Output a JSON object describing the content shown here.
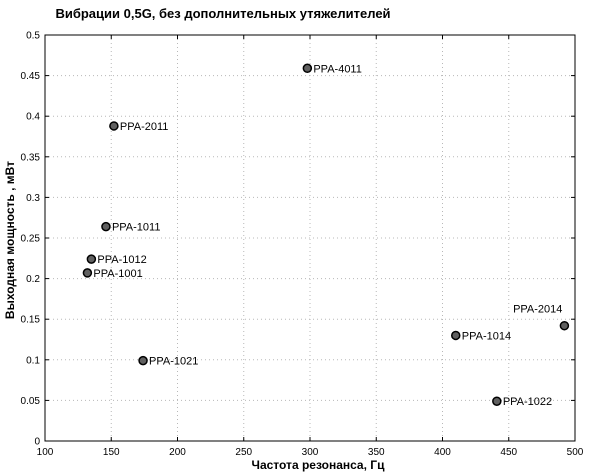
{
  "chart_data": {
    "type": "scatter",
    "title": "Вибрации 0,5G, без дополнительных утяжелителей",
    "xlabel": "Частота резонанса, Гц",
    "ylabel": "Выходная мощность , мВт",
    "xlim": [
      100,
      500
    ],
    "ylim": [
      0,
      0.5
    ],
    "xticks": [
      "100",
      "150",
      "200",
      "250",
      "300",
      "350",
      "400",
      "450",
      "500"
    ],
    "yticks": [
      "0",
      "0.05",
      "0.1",
      "0.15",
      "0.2",
      "0.25",
      "0.3",
      "0.35",
      "0.4",
      "0.45",
      "0.5"
    ],
    "grid": true,
    "marker_color": "#606060",
    "points": [
      {
        "label": "PPA-4011",
        "x": 298,
        "y": 0.459,
        "label_side": "right"
      },
      {
        "label": "PPA-2011",
        "x": 152,
        "y": 0.388,
        "label_side": "right"
      },
      {
        "label": "PPA-1011",
        "x": 146,
        "y": 0.264,
        "label_side": "right"
      },
      {
        "label": "PPA-1012",
        "x": 135,
        "y": 0.224,
        "label_side": "right"
      },
      {
        "label": "PPA-1001",
        "x": 132,
        "y": 0.207,
        "label_side": "right"
      },
      {
        "label": "PPA-1021",
        "x": 174,
        "y": 0.099,
        "label_side": "right"
      },
      {
        "label": "PPA-2014",
        "x": 492,
        "y": 0.142,
        "label_side": "above-left"
      },
      {
        "label": "PPA-1014",
        "x": 410,
        "y": 0.13,
        "label_side": "right"
      },
      {
        "label": "PPA-1022",
        "x": 441,
        "y": 0.049,
        "label_side": "right"
      }
    ]
  }
}
